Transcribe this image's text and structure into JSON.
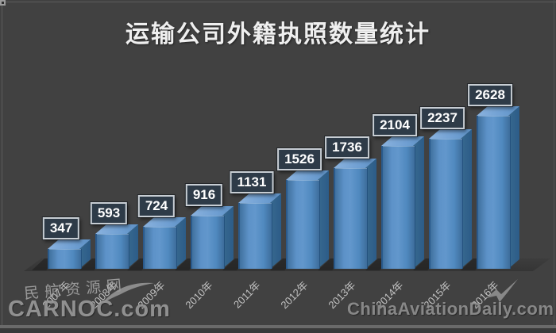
{
  "title": "运输公司外籍执照数量统计",
  "chart_data": {
    "type": "bar",
    "title": "运输公司外籍执照数量统计",
    "categories": [
      "2007年",
      "2008年",
      "2009年",
      "2010年",
      "2011年",
      "2012年",
      "2013年",
      "2014年",
      "2015年",
      "2016年"
    ],
    "values": [
      347,
      593,
      724,
      916,
      1131,
      1526,
      1736,
      2104,
      2237,
      2628
    ],
    "data_labels": [
      "347",
      "593",
      "724",
      "916",
      "1131",
      "1526",
      "1736",
      "2104",
      "2237",
      "2628"
    ],
    "xlabel": "",
    "ylabel": "",
    "ylim": [
      0,
      2800
    ],
    "grid": false,
    "legend": false,
    "style": "3d-bar",
    "bar_face_color": "#5d92c8",
    "bar_top_color": "#7fa9d8",
    "bar_side_color": "#31628e",
    "label_box_bg": "#2e3b48",
    "label_box_border": "#c7cdd3",
    "background_color": "#414141",
    "title_color": "#efefef",
    "axis_label_color": "#c1c1c1"
  },
  "watermarks": {
    "site_name": "民航资源网",
    "carnoc": "CARNOC.com",
    "china_aviation_daily": "ChinaAviationDaily.com"
  }
}
